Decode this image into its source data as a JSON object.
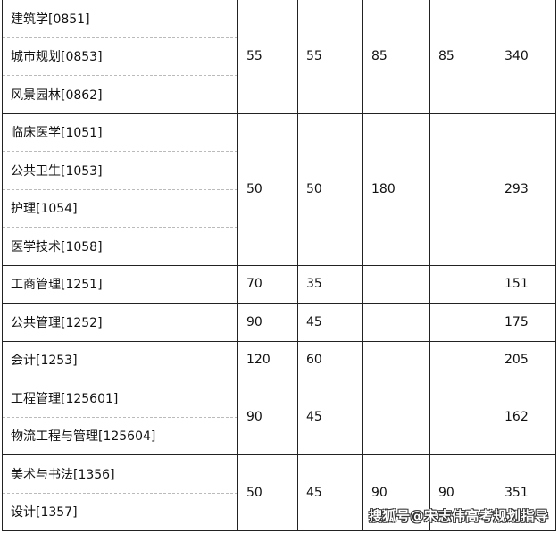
{
  "groups": [
    {
      "majors": [
        "建筑学[0851]",
        "城市规划[0853]",
        "风景园林[0862]"
      ],
      "values": [
        "55",
        "55",
        "85",
        "85",
        "340"
      ]
    },
    {
      "majors": [
        "临床医学[1051]",
        "公共卫生[1053]",
        "护理[1054]",
        "医学技术[1058]"
      ],
      "values": [
        "50",
        "50",
        "180",
        "",
        "293"
      ]
    },
    {
      "majors": [
        "工商管理[1251]"
      ],
      "values": [
        "70",
        "35",
        "",
        "",
        "151"
      ]
    },
    {
      "majors": [
        "公共管理[1252]"
      ],
      "values": [
        "90",
        "45",
        "",
        "",
        "175"
      ]
    },
    {
      "majors": [
        "会计[1253]"
      ],
      "values": [
        "120",
        "60",
        "",
        "",
        "205"
      ]
    },
    {
      "majors": [
        "工程管理[125601]",
        "物流工程与管理[125604]"
      ],
      "values": [
        "90",
        "45",
        "",
        "",
        "162"
      ]
    },
    {
      "majors": [
        "美术与书法[1356]",
        "设计[1357]"
      ],
      "values": [
        "50",
        "45",
        "90",
        "90",
        "351"
      ]
    }
  ],
  "watermark": "搜狐号@宋志伟高考规划指导"
}
